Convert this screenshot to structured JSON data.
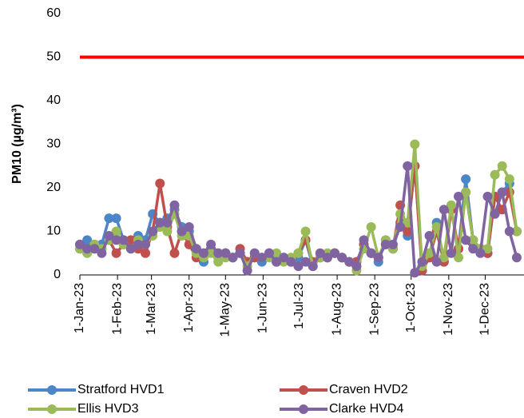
{
  "chart_data": {
    "type": "line",
    "y_label": "PM10 (µg/m³)",
    "x": [
      "2023-01-01",
      "2023-01-07",
      "2023-01-13",
      "2023-01-19",
      "2023-01-25",
      "2023-01-31",
      "2023-02-06",
      "2023-02-12",
      "2023-02-18",
      "2023-02-24",
      "2023-03-02",
      "2023-03-08",
      "2023-03-14",
      "2023-03-20",
      "2023-03-26",
      "2023-04-01",
      "2023-04-07",
      "2023-04-13",
      "2023-04-19",
      "2023-04-25",
      "2023-05-01",
      "2023-05-07",
      "2023-05-13",
      "2023-05-19",
      "2023-05-25",
      "2023-05-31",
      "2023-06-06",
      "2023-06-12",
      "2023-06-18",
      "2023-06-24",
      "2023-06-30",
      "2023-07-06",
      "2023-07-12",
      "2023-07-18",
      "2023-07-24",
      "2023-07-30",
      "2023-08-05",
      "2023-08-11",
      "2023-08-17",
      "2023-08-23",
      "2023-08-29",
      "2023-09-04",
      "2023-09-10",
      "2023-09-16",
      "2023-09-22",
      "2023-09-28",
      "2023-10-04",
      "2023-10-10",
      "2023-10-16",
      "2023-10-22",
      "2023-10-28",
      "2023-11-03",
      "2023-11-09",
      "2023-11-15",
      "2023-11-21",
      "2023-11-27",
      "2023-12-03",
      "2023-12-09",
      "2023-12-15",
      "2023-12-21",
      "2023-12-27"
    ],
    "series": [
      {
        "name": "Stratford HVD1",
        "color": "#4a86c8",
        "values": [
          6,
          8,
          6,
          7,
          13,
          13,
          8,
          7,
          9,
          8,
          14,
          12,
          13,
          15,
          11,
          10,
          5,
          3,
          6,
          4,
          5,
          4,
          5,
          3,
          4,
          3,
          5,
          3,
          4,
          3,
          4,
          8,
          2,
          4,
          4,
          5,
          4,
          3,
          3,
          7,
          5,
          3,
          8,
          6,
          12,
          9,
          25,
          1,
          4,
          12,
          3,
          15,
          6,
          22,
          8,
          6,
          5,
          18,
          19,
          21,
          10
        ]
      },
      {
        "name": "Craven HVD2",
        "color": "#c0504d",
        "values": [
          7,
          6,
          7,
          6,
          8,
          5,
          7,
          8,
          6,
          5,
          10,
          21,
          11,
          5,
          10,
          7,
          4,
          5,
          6,
          5,
          5,
          4,
          6,
          3,
          4,
          4,
          5,
          3,
          4,
          3,
          5,
          8,
          3,
          4,
          4,
          5,
          4,
          3,
          3,
          7,
          5,
          4,
          7,
          6,
          16,
          10,
          25,
          1,
          4,
          10,
          3,
          15,
          6,
          19,
          8,
          6,
          5,
          18,
          15,
          19,
          10
        ]
      },
      {
        "name": "Ellis HVD3",
        "color": "#9bbb59",
        "values": [
          6,
          5,
          7,
          6,
          8,
          10,
          7,
          6,
          8,
          7,
          9,
          11,
          10,
          14,
          9,
          9,
          5,
          4,
          5,
          3,
          4,
          4,
          5,
          2,
          5,
          4,
          4,
          5,
          3,
          4,
          5,
          10,
          2,
          4,
          5,
          5,
          4,
          3,
          1,
          6,
          11,
          4,
          8,
          6,
          14,
          12,
          30,
          2,
          5,
          11,
          4,
          16,
          4,
          19,
          8,
          6,
          6,
          23,
          25,
          22,
          10
        ]
      },
      {
        "name": "Clarke HVD4",
        "color": "#8064a2",
        "values": [
          7,
          6,
          6,
          5,
          9,
          8,
          8,
          6,
          7,
          7,
          10,
          12,
          12,
          16,
          10,
          11,
          6,
          5,
          7,
          5,
          5,
          4,
          5,
          1,
          5,
          4,
          5,
          3,
          4,
          3,
          2,
          3,
          2,
          5,
          4,
          5,
          4,
          3,
          2,
          8,
          5,
          4,
          7,
          7,
          11,
          25,
          0.5,
          3,
          9,
          3,
          15,
          5,
          18,
          8,
          6,
          5,
          18,
          14,
          19,
          10,
          4
        ]
      }
    ],
    "threshold": {
      "value": 50,
      "color": "#ff0000"
    },
    "xlim": [
      "2023-01-01",
      "2023-12-31"
    ],
    "xticks": [
      {
        "value": "2023-01-01",
        "label": "1-Jan-23"
      },
      {
        "value": "2023-02-01",
        "label": "1-Feb-23"
      },
      {
        "value": "2023-03-01",
        "label": "1-Mar-23"
      },
      {
        "value": "2023-04-01",
        "label": "1-Apr-23"
      },
      {
        "value": "2023-05-01",
        "label": "1-May-23"
      },
      {
        "value": "2023-06-01",
        "label": "1-Jun-23"
      },
      {
        "value": "2023-07-01",
        "label": "1-Jul-23"
      },
      {
        "value": "2023-08-01",
        "label": "1-Aug-23"
      },
      {
        "value": "2023-09-01",
        "label": "1-Sep-23"
      },
      {
        "value": "2023-10-01",
        "label": "1-Oct-23"
      },
      {
        "value": "2023-11-01",
        "label": "1-Nov-23"
      },
      {
        "value": "2023-12-01",
        "label": "1-Dec-23"
      }
    ],
    "ylim": [
      0,
      60
    ],
    "yticks": [
      0,
      10,
      20,
      30,
      40,
      50,
      60
    ],
    "grid": false,
    "legend": "bottom"
  }
}
